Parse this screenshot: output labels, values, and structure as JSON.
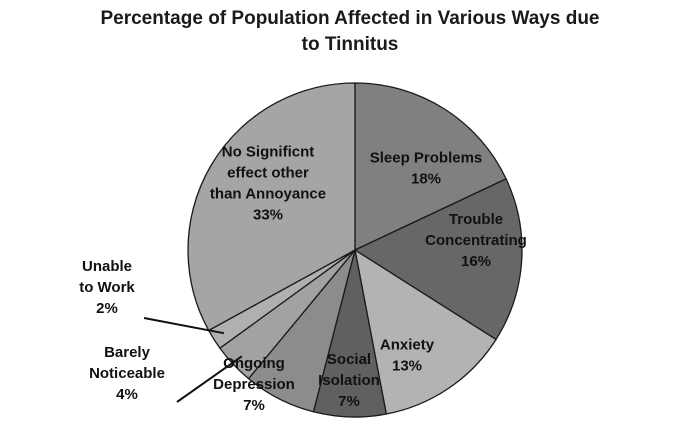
{
  "chart_data": {
    "type": "pie",
    "title_lines": [
      "Percentage of Population Affected in Various Ways due",
      "to Tinnitus"
    ],
    "slices": [
      {
        "label_lines": [
          "Sleep Problems",
          "18%"
        ],
        "value": 18,
        "color": "#808080"
      },
      {
        "label_lines": [
          "Trouble",
          "Concentrating",
          "16%"
        ],
        "value": 16,
        "color": "#676767"
      },
      {
        "label_lines": [
          "Anxiety",
          "13%"
        ],
        "value": 13,
        "color": "#b3b3b3"
      },
      {
        "label_lines": [
          "Social",
          "Isolation",
          "7%"
        ],
        "value": 7,
        "color": "#606060"
      },
      {
        "label_lines": [
          "Ongoing",
          "Depression",
          "7%"
        ],
        "value": 7,
        "color": "#8c8c8c"
      },
      {
        "label_lines": [
          "Barely",
          "Noticeable",
          "4%"
        ],
        "value": 4,
        "color": "#a2a2a2"
      },
      {
        "label_lines": [
          "Unable",
          "to Work",
          "2%"
        ],
        "value": 2,
        "color": "#b0b0b0"
      },
      {
        "label_lines": [
          "No Significnt",
          "effect other",
          "than Annoyance",
          "33%"
        ],
        "value": 33,
        "color": "#a5a5a5"
      }
    ],
    "legend": "none"
  }
}
